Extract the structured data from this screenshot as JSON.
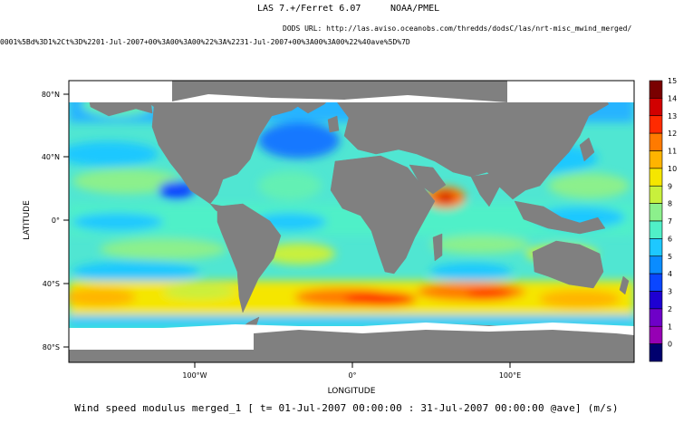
{
  "header": {
    "software": "LAS 7.+/Ferret 6.07",
    "organization": "NOAA/PMEL",
    "dods_url": "DODS URL: http://las.aviso.oceanobs.com/thredds/dodsC/las/nrt-misc_mwind_merged/",
    "query_string": "0001%5Bd%3D1%2Ct%3D%2201-Jul-2007+00%3A00%3A00%22%3A%2231-Jul-2007+00%3A00%3A00%22%40ave%5D%7D"
  },
  "map": {
    "xlabel": "LONGITUDE",
    "ylabel": "LATITUDE",
    "x_ticks": [
      "100°W",
      "0°",
      "100°E"
    ],
    "y_ticks": [
      "80°N",
      "40°N",
      "0°",
      "40°S",
      "80°S"
    ],
    "caption": "Wind speed modulus merged_1 [ t= 01-Jul-2007 00:00:00 : 31-Jul-2007 00:00:00 @ave] (m/s)",
    "colors": {
      "land": "#808080",
      "no_data": "#ffffff"
    }
  },
  "colorbar": {
    "labels": [
      "15",
      "14",
      "13",
      "12",
      "11",
      "10",
      "9",
      "8",
      "7",
      "6",
      "5",
      "4",
      "3",
      "2",
      "1",
      "0"
    ],
    "colors": [
      "#7a0000",
      "#d10000",
      "#ff2a00",
      "#ff7a00",
      "#ffb400",
      "#f5e600",
      "#c8f03c",
      "#8cf08c",
      "#50f0c8",
      "#1ec8ff",
      "#0a8cff",
      "#0a46ff",
      "#1e00d2",
      "#6e00c8",
      "#9600b4",
      "#00006e"
    ]
  }
}
